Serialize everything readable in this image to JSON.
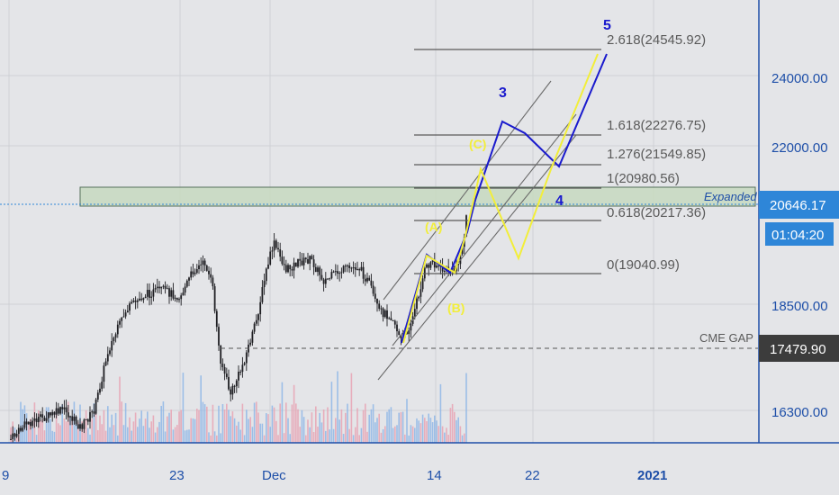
{
  "colors": {
    "background": "#e4e5e8",
    "grid": "#cfd1d6",
    "candle": "#1f1f23",
    "axis_line": "#1e4fa8",
    "axis_text": "#1e4fa8",
    "price_tag_blue": "#2e86d8",
    "price_tag_dark": "#3c3c3c",
    "wave_blue": "#1a1acd",
    "wave_yellow": "#f2ee3a",
    "fib_line": "#5a5a5a",
    "channel_line": "#6a6a6a",
    "zone_fill": "#c7d9c0",
    "zone_border": "#55705a",
    "volume_red": "#e7a3b3",
    "volume_blue": "#8fb7e6"
  },
  "price_axis": {
    "ticks": [
      "24000.00",
      "22000.00",
      "18500.00",
      "16300.00"
    ]
  },
  "time_axis": {
    "ticks": [
      "9",
      "23",
      "Dec",
      "14",
      "22",
      "2021"
    ]
  },
  "price_tags": {
    "current_price": "20646.17",
    "countdown": "01:04:20",
    "cme_gap_price": "17479.90"
  },
  "fib_levels": [
    {
      "label": "2.618(24545.92)"
    },
    {
      "label": "1.618(22276.75)"
    },
    {
      "label": "1.276(21549.85)"
    },
    {
      "label": "1(20980.56)"
    },
    {
      "label": "0.618(20217.36)"
    },
    {
      "label": "0(19040.99)"
    }
  ],
  "annotations": {
    "cme_gap": "CME GAP",
    "expanded": "Expanded",
    "wave_3": "3",
    "wave_4": "4",
    "wave_5": "5",
    "wave_a": "(A)",
    "wave_b": "(B)",
    "wave_c": "(C)"
  }
}
